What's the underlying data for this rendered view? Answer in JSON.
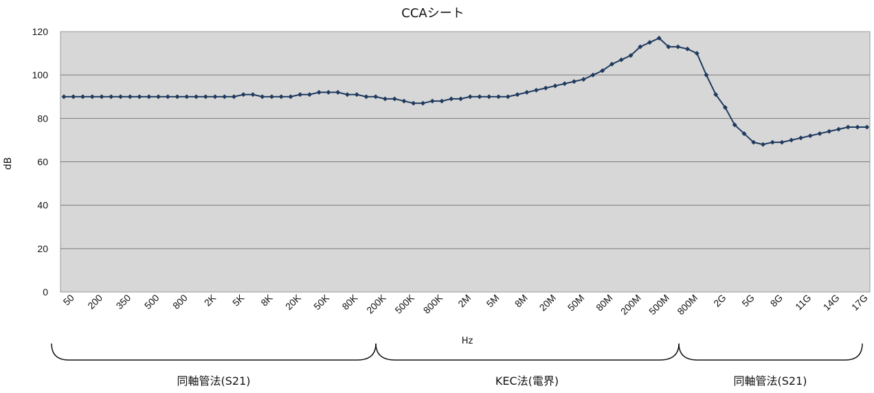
{
  "chart_data": {
    "type": "line",
    "title": "CCAシート",
    "xlabel": "Hz",
    "ylabel": "dB",
    "ylim": [
      0,
      120
    ],
    "yticks": [
      0,
      20,
      40,
      60,
      80,
      100,
      120
    ],
    "grid": true,
    "x_tick_labels": [
      "50",
      "200",
      "350",
      "500",
      "800",
      "2K",
      "5K",
      "8K",
      "20K",
      "50K",
      "80K",
      "200K",
      "500K",
      "800K",
      "2M",
      "5M",
      "8M",
      "20M",
      "50M",
      "80M",
      "200M",
      "500M",
      "800M",
      "2G",
      "5G",
      "8G",
      "11G",
      "14G",
      "17G"
    ],
    "x_tick_every": 3,
    "series": [
      {
        "color": "#1f3a5f",
        "values": [
          90,
          90,
          90,
          90,
          90,
          90,
          90,
          90,
          90,
          90,
          90,
          90,
          90,
          90,
          90,
          90,
          90,
          90,
          90,
          91,
          91,
          90,
          90,
          90,
          90,
          91,
          91,
          92,
          92,
          92,
          91,
          91,
          90,
          90,
          89,
          89,
          88,
          87,
          87,
          88,
          88,
          89,
          89,
          90,
          90,
          90,
          90,
          90,
          91,
          92,
          93,
          94,
          95,
          96,
          97,
          98,
          100,
          102,
          105,
          107,
          109,
          113,
          115,
          117,
          113,
          113,
          112,
          110,
          100,
          91,
          85,
          77,
          73,
          69,
          68,
          69,
          69,
          70,
          71,
          72,
          73,
          74,
          75,
          76,
          76,
          76
        ]
      }
    ],
    "method_ranges": [
      {
        "label": "同軸管法(S21)"
      },
      {
        "label": "KEC法(電界)"
      },
      {
        "label": "同軸管法(S21)"
      }
    ],
    "colors": {
      "plot_background": "#d6d7d6",
      "gridline": "#7a7a7a",
      "line": "#1f3a5f"
    }
  }
}
